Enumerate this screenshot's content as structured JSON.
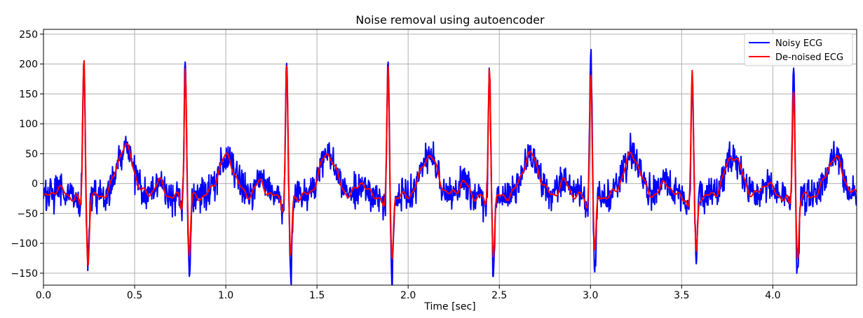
{
  "chart_data": {
    "type": "line",
    "title": "Noise removal using autoencoder",
    "xlabel": "Time [sec]",
    "ylabel": "",
    "xlim": [
      0,
      4.46
    ],
    "ylim": [
      -170,
      258
    ],
    "x_ticks": [
      0.0,
      0.5,
      1.0,
      1.5,
      2.0,
      2.5,
      3.0,
      3.5,
      4.0
    ],
    "x_tick_labels": [
      "0.0",
      "0.5",
      "1.0",
      "1.5",
      "2.0",
      "2.5",
      "3.0",
      "3.5",
      "4.0"
    ],
    "y_ticks": [
      -150,
      -100,
      -50,
      0,
      50,
      100,
      150,
      200,
      250
    ],
    "y_tick_labels": [
      "−150",
      "−100",
      "−50",
      "0",
      "50",
      "100",
      "150",
      "200",
      "250"
    ],
    "grid": true,
    "legend_position": "top-right",
    "beat_times": [
      0.222,
      0.778,
      1.334,
      1.89,
      2.446,
      3.002,
      3.558,
      4.114
    ],
    "r_peak_values": [
      232,
      217,
      220,
      213,
      220,
      212,
      210,
      182
    ],
    "s_trough_values": [
      -123,
      -110,
      -113,
      -112,
      -110,
      -110,
      -108,
      -115
    ],
    "t_wave_peak_values": [
      62,
      45,
      50,
      47,
      48,
      48,
      47,
      43
    ],
    "series": [
      {
        "name": "Noisy ECG",
        "color": "#0000ff",
        "noise_amplitude": 24,
        "r_peak_values": [
          232,
          220,
          213,
          226,
          212,
          238,
          208,
          225
        ],
        "s_trough_values": [
          -125,
          -143,
          -135,
          -145,
          -142,
          -132,
          -118,
          -148
        ]
      },
      {
        "name": "De-noised ECG",
        "color": "#ff0000"
      }
    ]
  }
}
